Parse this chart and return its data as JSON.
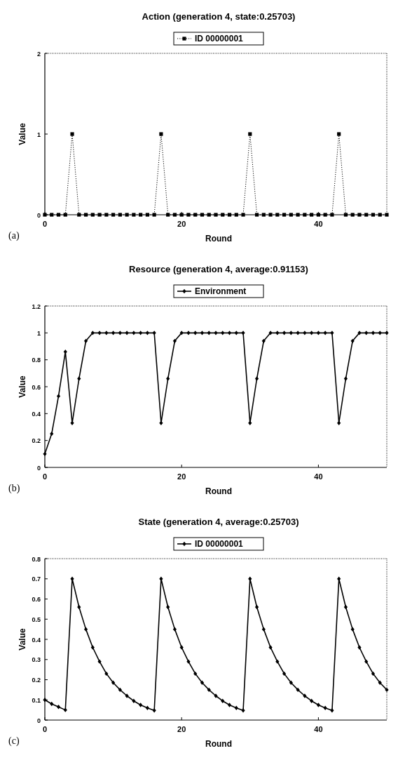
{
  "chart_data": [
    {
      "type": "line",
      "title": "Action (generation 4, state:0.25703)",
      "xlabel": "Round",
      "ylabel": "Value",
      "annotations": [
        "(a)"
      ],
      "legend": "top",
      "marker": "square",
      "line_style": "dotted",
      "xlim": [
        0,
        50
      ],
      "xticks": [
        0,
        20,
        40
      ],
      "ylim": [
        0,
        2
      ],
      "yticks": [
        0,
        1,
        2
      ],
      "x": [
        0,
        1,
        2,
        3,
        4,
        5,
        6,
        7,
        8,
        9,
        10,
        11,
        12,
        13,
        14,
        15,
        16,
        17,
        18,
        19,
        20,
        21,
        22,
        23,
        24,
        25,
        26,
        27,
        28,
        29,
        30,
        31,
        32,
        33,
        34,
        35,
        36,
        37,
        38,
        39,
        40,
        41,
        42,
        43,
        44,
        45,
        46,
        47,
        48,
        49,
        50
      ],
      "series": [
        {
          "name": "ID 00000001",
          "color": "#000000",
          "values": [
            0,
            0,
            0,
            0,
            1,
            0,
            0,
            0,
            0,
            0,
            0,
            0,
            0,
            0,
            0,
            0,
            0,
            1,
            0,
            0,
            0,
            0,
            0,
            0,
            0,
            0,
            0,
            0,
            0,
            0,
            1,
            0,
            0,
            0,
            0,
            0,
            0,
            0,
            0,
            0,
            0,
            0,
            0,
            1,
            0,
            0,
            0,
            0,
            0,
            0,
            0
          ]
        }
      ]
    },
    {
      "type": "line",
      "title": "Resource (generation 4, average:0.91153)",
      "xlabel": "Round",
      "ylabel": "Value",
      "annotations": [
        "(b)"
      ],
      "legend": "top",
      "marker": "diamond",
      "line_style": "solid",
      "xlim": [
        0,
        50
      ],
      "xticks": [
        0,
        20,
        40
      ],
      "ylim": [
        0,
        1.2
      ],
      "yticks": [
        0,
        0.2,
        0.4,
        0.6,
        0.8,
        1,
        1.2
      ],
      "x": [
        0,
        1,
        2,
        3,
        4,
        5,
        6,
        7,
        8,
        9,
        10,
        11,
        12,
        13,
        14,
        15,
        16,
        17,
        18,
        19,
        20,
        21,
        22,
        23,
        24,
        25,
        26,
        27,
        28,
        29,
        30,
        31,
        32,
        33,
        34,
        35,
        36,
        37,
        38,
        39,
        40,
        41,
        42,
        43,
        44,
        45,
        46,
        47,
        48,
        49,
        50
      ],
      "series": [
        {
          "name": "Environment",
          "color": "#000000",
          "values": [
            0.1,
            0.25,
            0.53,
            0.86,
            0.33,
            0.66,
            0.94,
            1,
            1,
            1,
            1,
            1,
            1,
            1,
            1,
            1,
            1,
            0.33,
            0.66,
            0.94,
            1,
            1,
            1,
            1,
            1,
            1,
            1,
            1,
            1,
            1,
            0.33,
            0.66,
            0.94,
            1,
            1,
            1,
            1,
            1,
            1,
            1,
            1,
            1,
            1,
            0.33,
            0.66,
            0.94,
            1,
            1,
            1,
            1,
            1
          ]
        }
      ]
    },
    {
      "type": "line",
      "title": "State (generation 4, average:0.25703)",
      "xlabel": "Round",
      "ylabel": "Value",
      "annotations": [
        "(c)"
      ],
      "legend": "top",
      "marker": "diamond",
      "line_style": "solid",
      "xlim": [
        0,
        50
      ],
      "xticks": [
        0,
        20,
        40
      ],
      "ylim": [
        0,
        0.8
      ],
      "yticks": [
        0,
        0.1,
        0.2,
        0.3,
        0.4,
        0.5,
        0.6,
        0.7,
        0.8
      ],
      "x": [
        0,
        1,
        2,
        3,
        4,
        5,
        6,
        7,
        8,
        9,
        10,
        11,
        12,
        13,
        14,
        15,
        16,
        17,
        18,
        19,
        20,
        21,
        22,
        23,
        24,
        25,
        26,
        27,
        28,
        29,
        30,
        31,
        32,
        33,
        34,
        35,
        36,
        37,
        38,
        39,
        40,
        41,
        42,
        43,
        44,
        45,
        46,
        47,
        48,
        49,
        50
      ],
      "series": [
        {
          "name": "ID 00000001",
          "color": "#000000",
          "values": [
            0.1,
            0.08,
            0.065,
            0.05,
            0.7,
            0.56,
            0.45,
            0.36,
            0.29,
            0.23,
            0.185,
            0.15,
            0.12,
            0.095,
            0.075,
            0.06,
            0.048,
            0.7,
            0.56,
            0.45,
            0.36,
            0.29,
            0.23,
            0.185,
            0.15,
            0.12,
            0.095,
            0.075,
            0.06,
            0.048,
            0.7,
            0.56,
            0.45,
            0.36,
            0.29,
            0.23,
            0.185,
            0.15,
            0.12,
            0.095,
            0.075,
            0.06,
            0.048,
            0.7,
            0.56,
            0.45,
            0.36,
            0.29,
            0.23,
            0.185,
            0.15
          ]
        }
      ]
    }
  ]
}
